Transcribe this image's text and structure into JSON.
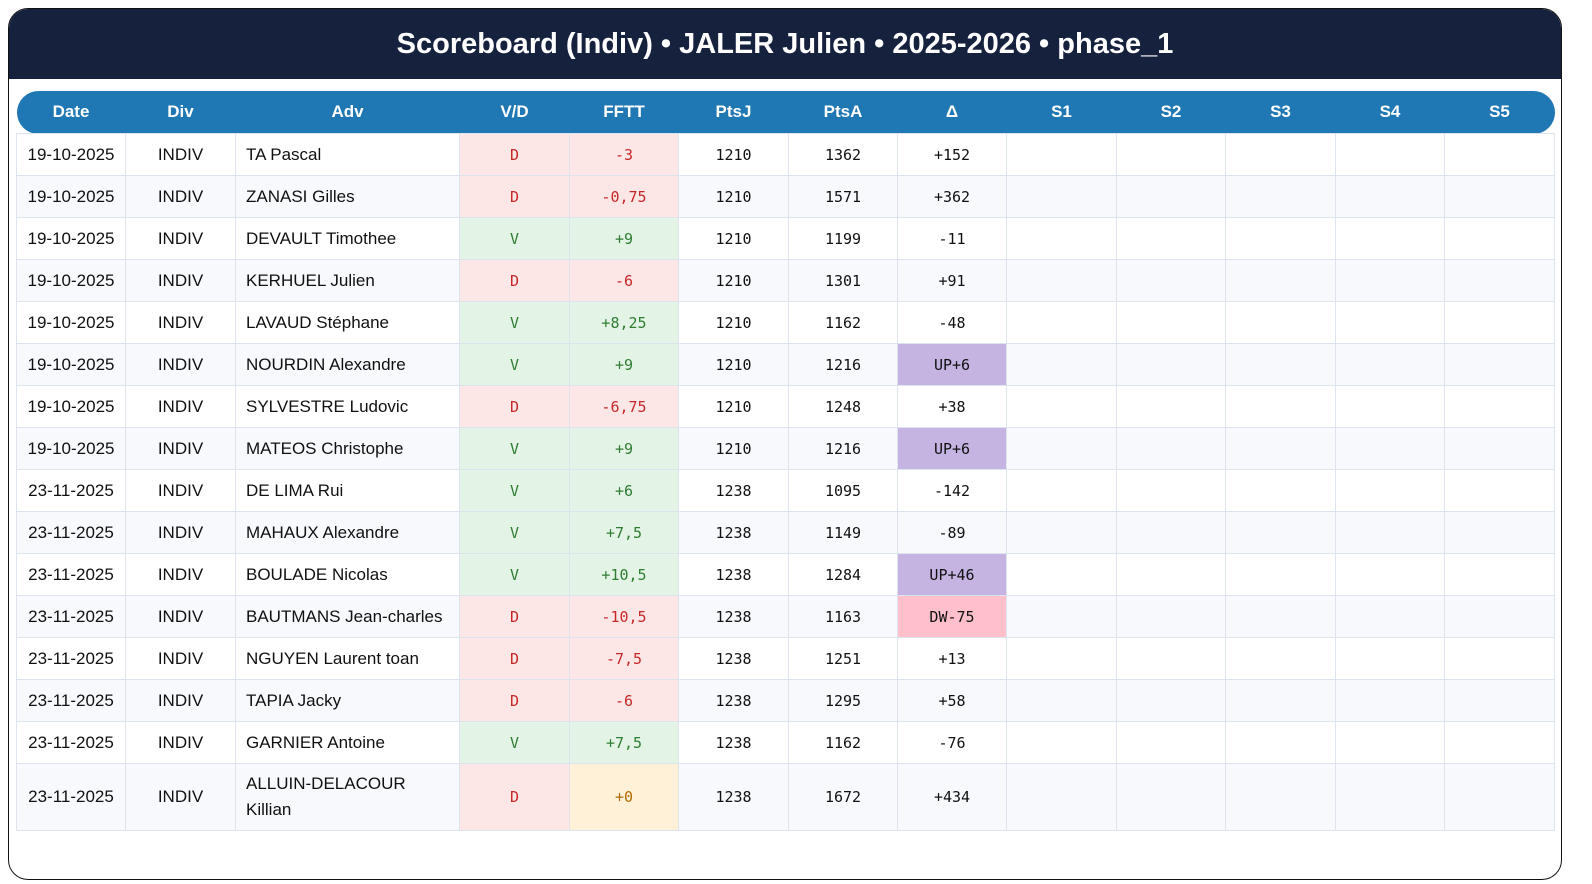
{
  "title": "Scoreboard (Indiv) • JALER Julien • 2025-2026 • phase_1",
  "colors": {
    "header_bg": "#16213e",
    "table_header_bg": "#1f77b4",
    "loss_bg": "#fde6e6",
    "win_bg": "#e3f4e6",
    "neutral_bg": "#fff1d8",
    "up_bg": "#c5b3e2",
    "down_bg": "#ffc0cb"
  },
  "columns": [
    "Date",
    "Div",
    "Adv",
    "V/D",
    "FFTT",
    "PtsJ",
    "PtsA",
    "Δ",
    "S1",
    "S2",
    "S3",
    "S4",
    "S5"
  ],
  "rows": [
    {
      "date": "19-10-2025",
      "div": "INDIV",
      "adv": "TA Pascal",
      "vd": "D",
      "fftt": "-3",
      "ptsj": "1210",
      "ptsa": "1362",
      "delta": "+152",
      "s1": "",
      "s2": "",
      "s3": "",
      "s4": "",
      "s5": ""
    },
    {
      "date": "19-10-2025",
      "div": "INDIV",
      "adv": "ZANASI Gilles",
      "vd": "D",
      "fftt": "-0,75",
      "ptsj": "1210",
      "ptsa": "1571",
      "delta": "+362",
      "s1": "",
      "s2": "",
      "s3": "",
      "s4": "",
      "s5": ""
    },
    {
      "date": "19-10-2025",
      "div": "INDIV",
      "adv": "DEVAULT Timothee",
      "vd": "V",
      "fftt": "+9",
      "ptsj": "1210",
      "ptsa": "1199",
      "delta": "-11",
      "s1": "",
      "s2": "",
      "s3": "",
      "s4": "",
      "s5": ""
    },
    {
      "date": "19-10-2025",
      "div": "INDIV",
      "adv": "KERHUEL Julien",
      "vd": "D",
      "fftt": "-6",
      "ptsj": "1210",
      "ptsa": "1301",
      "delta": "+91",
      "s1": "",
      "s2": "",
      "s3": "",
      "s4": "",
      "s5": ""
    },
    {
      "date": "19-10-2025",
      "div": "INDIV",
      "adv": "LAVAUD Stéphane",
      "vd": "V",
      "fftt": "+8,25",
      "ptsj": "1210",
      "ptsa": "1162",
      "delta": "-48",
      "s1": "",
      "s2": "",
      "s3": "",
      "s4": "",
      "s5": ""
    },
    {
      "date": "19-10-2025",
      "div": "INDIV",
      "adv": "NOURDIN Alexandre",
      "vd": "V",
      "fftt": "+9",
      "ptsj": "1210",
      "ptsa": "1216",
      "delta": "UP+6",
      "s1": "",
      "s2": "",
      "s3": "",
      "s4": "",
      "s5": ""
    },
    {
      "date": "19-10-2025",
      "div": "INDIV",
      "adv": "SYLVESTRE Ludovic",
      "vd": "D",
      "fftt": "-6,75",
      "ptsj": "1210",
      "ptsa": "1248",
      "delta": "+38",
      "s1": "",
      "s2": "",
      "s3": "",
      "s4": "",
      "s5": ""
    },
    {
      "date": "19-10-2025",
      "div": "INDIV",
      "adv": "MATEOS Christophe",
      "vd": "V",
      "fftt": "+9",
      "ptsj": "1210",
      "ptsa": "1216",
      "delta": "UP+6",
      "s1": "",
      "s2": "",
      "s3": "",
      "s4": "",
      "s5": ""
    },
    {
      "date": "23-11-2025",
      "div": "INDIV",
      "adv": "DE LIMA Rui",
      "vd": "V",
      "fftt": "+6",
      "ptsj": "1238",
      "ptsa": "1095",
      "delta": "-142",
      "s1": "",
      "s2": "",
      "s3": "",
      "s4": "",
      "s5": ""
    },
    {
      "date": "23-11-2025",
      "div": "INDIV",
      "adv": "MAHAUX Alexandre",
      "vd": "V",
      "fftt": "+7,5",
      "ptsj": "1238",
      "ptsa": "1149",
      "delta": "-89",
      "s1": "",
      "s2": "",
      "s3": "",
      "s4": "",
      "s5": ""
    },
    {
      "date": "23-11-2025",
      "div": "INDIV",
      "adv": "BOULADE Nicolas",
      "vd": "V",
      "fftt": "+10,5",
      "ptsj": "1238",
      "ptsa": "1284",
      "delta": "UP+46",
      "s1": "",
      "s2": "",
      "s3": "",
      "s4": "",
      "s5": ""
    },
    {
      "date": "23-11-2025",
      "div": "INDIV",
      "adv": "BAUTMANS Jean-charles",
      "vd": "D",
      "fftt": "-10,5",
      "ptsj": "1238",
      "ptsa": "1163",
      "delta": "DW-75",
      "s1": "",
      "s2": "",
      "s3": "",
      "s4": "",
      "s5": ""
    },
    {
      "date": "23-11-2025",
      "div": "INDIV",
      "adv": "NGUYEN Laurent toan",
      "vd": "D",
      "fftt": "-7,5",
      "ptsj": "1238",
      "ptsa": "1251",
      "delta": "+13",
      "s1": "",
      "s2": "",
      "s3": "",
      "s4": "",
      "s5": ""
    },
    {
      "date": "23-11-2025",
      "div": "INDIV",
      "adv": "TAPIA Jacky",
      "vd": "D",
      "fftt": "-6",
      "ptsj": "1238",
      "ptsa": "1295",
      "delta": "+58",
      "s1": "",
      "s2": "",
      "s3": "",
      "s4": "",
      "s5": ""
    },
    {
      "date": "23-11-2025",
      "div": "INDIV",
      "adv": "GARNIER Antoine",
      "vd": "V",
      "fftt": "+7,5",
      "ptsj": "1238",
      "ptsa": "1162",
      "delta": "-76",
      "s1": "",
      "s2": "",
      "s3": "",
      "s4": "",
      "s5": ""
    },
    {
      "date": "23-11-2025",
      "div": "INDIV",
      "adv": "ALLUIN-DELACOUR Killian",
      "vd": "D",
      "fftt": "+0",
      "ptsj": "1238",
      "ptsa": "1672",
      "delta": "+434",
      "s1": "",
      "s2": "",
      "s3": "",
      "s4": "",
      "s5": ""
    }
  ]
}
